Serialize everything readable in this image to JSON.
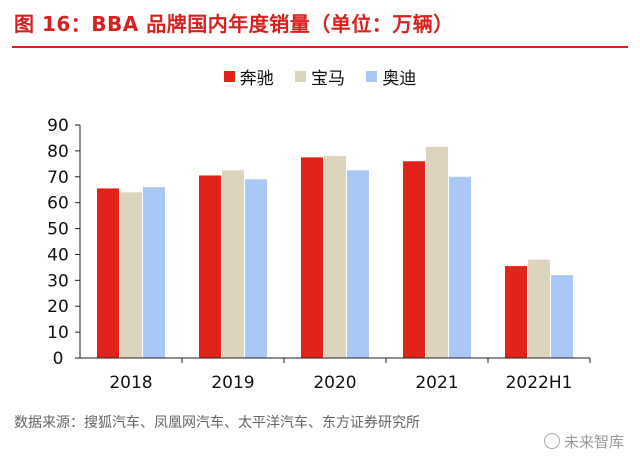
{
  "header": {
    "title": "图 16：BBA 品牌国内年度销量（单位：万辆）"
  },
  "colors": {
    "accent": "#d9201e",
    "benz": "#e2231a",
    "bmw": "#ddd4be",
    "audi": "#a9c8f5"
  },
  "legend": {
    "items": [
      "奔驰",
      "宝马",
      "奥迪"
    ]
  },
  "chart_data": {
    "type": "bar",
    "title": "图 16：BBA 品牌国内年度销量（单位：万辆）",
    "xlabel": "",
    "ylabel": "",
    "categories": [
      "2018",
      "2019",
      "2020",
      "2021",
      "2022H1"
    ],
    "series": [
      {
        "name": "奔驰",
        "values": [
          65.5,
          70.5,
          77.5,
          76,
          35.5
        ]
      },
      {
        "name": "宝马",
        "values": [
          64,
          72.5,
          78,
          81.5,
          38
        ]
      },
      {
        "name": "奥迪",
        "values": [
          66,
          69,
          72.5,
          70,
          32
        ]
      }
    ],
    "ylim": [
      0,
      90
    ],
    "yticks": [
      "0",
      "10",
      "20",
      "30",
      "40",
      "50",
      "60",
      "70",
      "80",
      "90"
    ],
    "grid": false,
    "legend_position": "top"
  },
  "footer": {
    "source": "数据来源：搜狐汽车、凤凰网汽车、太平洋汽车、东方证券研究所",
    "watermark": "未来智库"
  }
}
